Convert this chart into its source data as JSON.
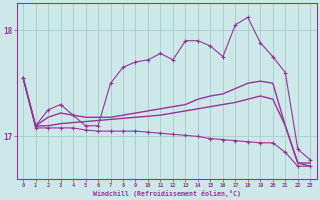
{
  "background_color": "#cce8e8",
  "grid_color": "#aacccc",
  "line_color": "#993399",
  "xlabel": "Windchill (Refroidissement éolien,°C)",
  "yticks": [
    17,
    18
  ],
  "xlim": [
    -0.5,
    23.5
  ],
  "ylim": [
    16.6,
    18.25
  ],
  "xticks": [
    0,
    1,
    2,
    3,
    4,
    5,
    6,
    7,
    8,
    9,
    10,
    11,
    12,
    13,
    14,
    15,
    16,
    17,
    18,
    19,
    20,
    21,
    22,
    23
  ],
  "series": [
    {
      "x": [
        0,
        1,
        2,
        3,
        4,
        5,
        6,
        7,
        8,
        9,
        10,
        11,
        12,
        13,
        14,
        15,
        16,
        17,
        18,
        19,
        20,
        21,
        22,
        23
      ],
      "y": [
        17.55,
        17.1,
        17.1,
        17.12,
        17.13,
        17.14,
        17.15,
        17.16,
        17.17,
        17.18,
        17.19,
        17.2,
        17.22,
        17.24,
        17.26,
        17.28,
        17.3,
        17.32,
        17.35,
        17.38,
        17.35,
        17.1,
        16.75,
        16.75
      ],
      "marker": null,
      "linewidth": 1.0
    },
    {
      "x": [
        0,
        1,
        2,
        3,
        4,
        5,
        6,
        7,
        8,
        9,
        10,
        11,
        12,
        13,
        14,
        15,
        16,
        17,
        18,
        19,
        20,
        21,
        22,
        23
      ],
      "y": [
        17.55,
        17.1,
        17.25,
        17.3,
        17.2,
        17.1,
        17.1,
        17.5,
        17.65,
        17.7,
        17.72,
        17.78,
        17.72,
        17.9,
        17.9,
        17.85,
        17.75,
        18.05,
        18.12,
        17.88,
        17.75,
        17.6,
        16.88,
        16.78
      ],
      "marker": "+",
      "linewidth": 0.8
    },
    {
      "x": [
        0,
        1,
        2,
        3,
        4,
        5,
        6,
        7,
        8,
        9,
        10,
        11,
        12,
        13,
        14,
        15,
        16,
        17,
        18,
        19,
        20,
        21,
        22,
        23
      ],
      "y": [
        17.55,
        17.08,
        17.08,
        17.08,
        17.08,
        17.06,
        17.05,
        17.05,
        17.05,
        17.05,
        17.04,
        17.03,
        17.02,
        17.01,
        17.0,
        16.98,
        16.97,
        16.96,
        16.95,
        16.94,
        16.94,
        16.85,
        16.72,
        16.72
      ],
      "marker": "+",
      "linewidth": 0.8
    },
    {
      "x": [
        0,
        1,
        2,
        3,
        4,
        5,
        6,
        7,
        8,
        9,
        10,
        11,
        12,
        13,
        14,
        15,
        16,
        17,
        18,
        19,
        20,
        21,
        22,
        23
      ],
      "y": [
        17.55,
        17.1,
        17.18,
        17.22,
        17.2,
        17.18,
        17.18,
        17.18,
        17.2,
        17.22,
        17.24,
        17.26,
        17.28,
        17.3,
        17.35,
        17.38,
        17.4,
        17.45,
        17.5,
        17.52,
        17.5,
        17.1,
        16.75,
        16.72
      ],
      "marker": null,
      "linewidth": 1.0
    }
  ]
}
